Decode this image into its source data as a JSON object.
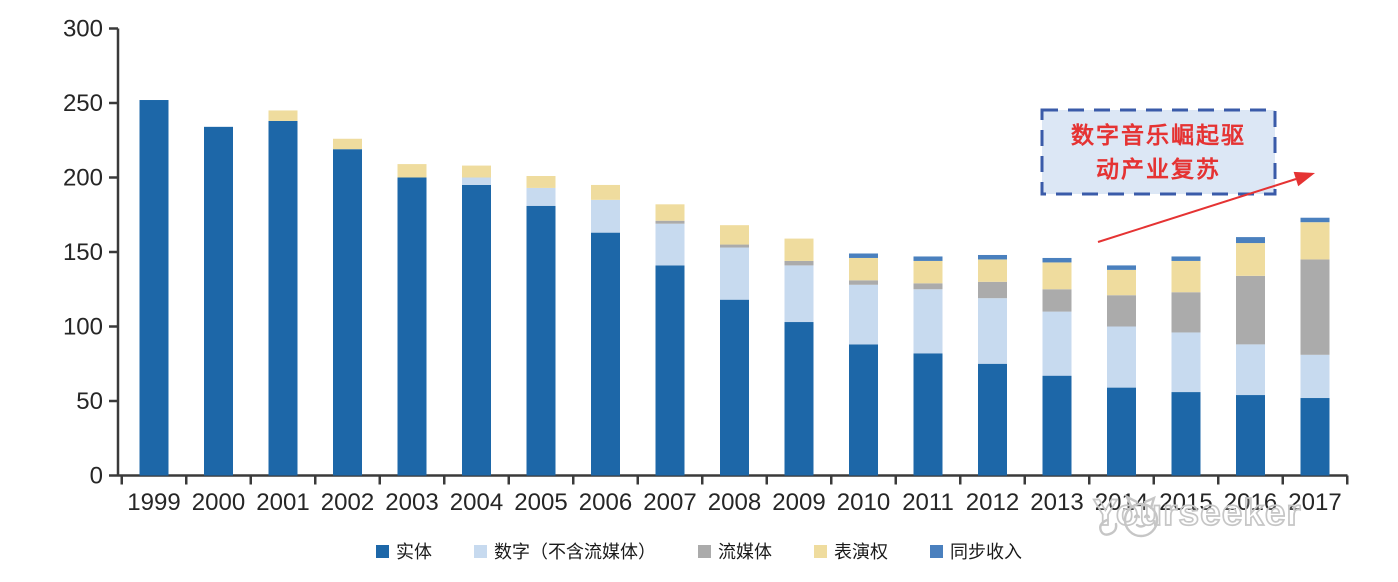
{
  "chart_data": {
    "type": "bar",
    "stacked": true,
    "title": "",
    "xlabel": "",
    "ylabel": "",
    "ylim": [
      0,
      300
    ],
    "yticks": [
      0,
      50,
      100,
      150,
      200,
      250,
      300
    ],
    "grid": false,
    "legend_position": "bottom",
    "categories": [
      "1999",
      "2000",
      "2001",
      "2002",
      "2003",
      "2004",
      "2005",
      "2006",
      "2007",
      "2008",
      "2009",
      "2010",
      "2011",
      "2012",
      "2013",
      "2014",
      "2015",
      "2016",
      "2017"
    ],
    "series": [
      {
        "name": "实体",
        "color": "#1D67A8",
        "values": [
          252,
          234,
          238,
          219,
          200,
          195,
          181,
          163,
          141,
          118,
          103,
          88,
          82,
          75,
          67,
          59,
          56,
          54,
          52
        ]
      },
      {
        "name": "数字（不含流媒体）",
        "color": "#C7DAEF",
        "values": [
          0,
          0,
          0,
          0,
          0,
          5,
          12,
          22,
          28,
          35,
          38,
          40,
          43,
          44,
          43,
          41,
          40,
          34,
          29
        ]
      },
      {
        "name": "流媒体",
        "color": "#ABABAB",
        "values": [
          0,
          0,
          0,
          0,
          0,
          0,
          0,
          0,
          2,
          2,
          3,
          3,
          4,
          11,
          15,
          21,
          27,
          46,
          64
        ]
      },
      {
        "name": "表演权",
        "color": "#EFDC9E",
        "values": [
          0,
          0,
          7,
          7,
          9,
          8,
          8,
          10,
          11,
          13,
          15,
          15,
          15,
          15,
          18,
          17,
          21,
          22,
          25
        ]
      },
      {
        "name": "同步收入",
        "color": "#4A80BE",
        "values": [
          0,
          0,
          0,
          0,
          0,
          0,
          0,
          0,
          0,
          0,
          0,
          3,
          3,
          3,
          3,
          3,
          3,
          4,
          3
        ]
      }
    ]
  },
  "annotation": {
    "line1": "数字音乐崛起驱",
    "line2": "动产业复苏",
    "text_color": "#E53333",
    "box_fill": "#DCE7F5",
    "box_border": "#3A5BA9",
    "arrow_color": "#E53333"
  },
  "watermark": {
    "text": "Yourseeker",
    "color": "#C6C6C6"
  },
  "axis": {
    "line_color": "#3A3A3A",
    "label_color": "#262626"
  }
}
